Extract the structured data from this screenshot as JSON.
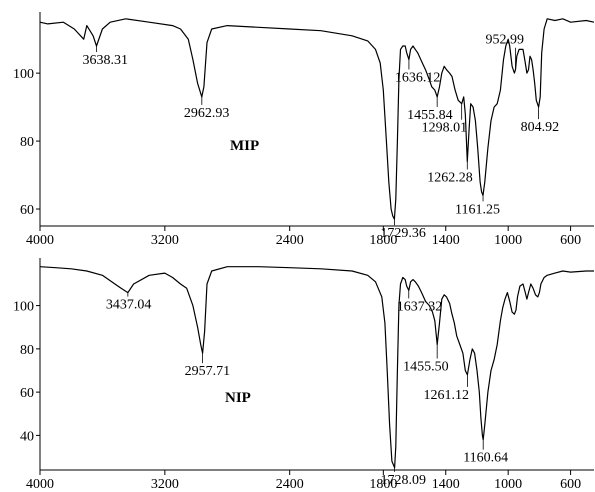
{
  "chart_data": [
    {
      "type": "line",
      "label": "MIP",
      "xlim": [
        4000,
        450
      ],
      "ylim": [
        55,
        118
      ],
      "x_ticks": [
        4000,
        3200,
        2400,
        1800,
        1400,
        1000,
        600
      ],
      "y_ticks": [
        100,
        80,
        60
      ],
      "series": [
        {
          "points": [
            [
              4000,
              115
            ],
            [
              3950,
              114.5
            ],
            [
              3850,
              115
            ],
            [
              3780,
              113
            ],
            [
              3720,
              110
            ],
            [
              3700,
              114
            ],
            [
              3660,
              111
            ],
            [
              3638,
              108
            ],
            [
              3600,
              113
            ],
            [
              3550,
              115
            ],
            [
              3450,
              116
            ],
            [
              3300,
              115
            ],
            [
              3150,
              114
            ],
            [
              3100,
              113
            ],
            [
              3050,
              110
            ],
            [
              3020,
              104
            ],
            [
              2990,
              97
            ],
            [
              2963,
              93
            ],
            [
              2950,
              96
            ],
            [
              2930,
              109
            ],
            [
              2900,
              113
            ],
            [
              2800,
              114
            ],
            [
              2600,
              113.5
            ],
            [
              2400,
              113
            ],
            [
              2200,
              112.5
            ],
            [
              2000,
              111
            ],
            [
              1900,
              109.5
            ],
            [
              1850,
              107
            ],
            [
              1820,
              103
            ],
            [
              1800,
              95
            ],
            [
              1780,
              80
            ],
            [
              1765,
              68
            ],
            [
              1750,
              60
            ],
            [
              1740,
              58
            ],
            [
              1729,
              57
            ],
            [
              1720,
              63
            ],
            [
              1710,
              80
            ],
            [
              1700,
              98
            ],
            [
              1690,
              107
            ],
            [
              1675,
              108
            ],
            [
              1660,
              108
            ],
            [
              1650,
              106
            ],
            [
              1636,
              104
            ],
            [
              1625,
              107
            ],
            [
              1610,
              108
            ],
            [
              1595,
              107
            ],
            [
              1580,
              106
            ],
            [
              1560,
              104
            ],
            [
              1530,
              101
            ],
            [
              1505,
              98
            ],
            [
              1490,
              96
            ],
            [
              1470,
              95
            ],
            [
              1455,
              93
            ],
            [
              1440,
              96
            ],
            [
              1425,
              100
            ],
            [
              1410,
              102
            ],
            [
              1395,
              101
            ],
            [
              1375,
              100
            ],
            [
              1360,
              99
            ],
            [
              1340,
              95
            ],
            [
              1320,
              92
            ],
            [
              1298,
              91
            ],
            [
              1285,
              93
            ],
            [
              1275,
              88
            ],
            [
              1262,
              74
            ],
            [
              1250,
              84
            ],
            [
              1240,
              91
            ],
            [
              1225,
              90
            ],
            [
              1210,
              86
            ],
            [
              1195,
              78
            ],
            [
              1180,
              68
            ],
            [
              1170,
              65
            ],
            [
              1161,
              64
            ],
            [
              1150,
              68
            ],
            [
              1130,
              78
            ],
            [
              1110,
              86
            ],
            [
              1090,
              90
            ],
            [
              1070,
              91
            ],
            [
              1050,
              95
            ],
            [
              1030,
              104
            ],
            [
              1015,
              108
            ],
            [
              1000,
              110
            ],
            [
              990,
              108
            ],
            [
              975,
              102
            ],
            [
              960,
              100
            ],
            [
              953,
              101
            ],
            [
              945,
              105
            ],
            [
              930,
              107
            ],
            [
              905,
              107
            ],
            [
              890,
              103
            ],
            [
              880,
              100
            ],
            [
              870,
              101
            ],
            [
              860,
              105
            ],
            [
              850,
              104
            ],
            [
              840,
              101
            ],
            [
              830,
              97
            ],
            [
              820,
              92
            ],
            [
              805,
              90
            ],
            [
              795,
              93
            ],
            [
              785,
              106
            ],
            [
              770,
              113
            ],
            [
              750,
              116
            ],
            [
              700,
              115.5
            ],
            [
              650,
              116
            ],
            [
              600,
              115
            ],
            [
              500,
              115.5
            ],
            [
              450,
              115
            ]
          ]
        }
      ],
      "annotations": [
        {
          "text": "3638.31",
          "x": 3638,
          "y": 108
        },
        {
          "text": "2962.93",
          "x": 2963,
          "y": 93
        },
        {
          "text": "1636.12",
          "x": 1636,
          "y": 104
        },
        {
          "text": "1455.84",
          "x": 1455,
          "y": 93
        },
        {
          "text": "1298.01",
          "x": 1298,
          "y": 91
        },
        {
          "text": "1262.28",
          "x": 1262,
          "y": 74
        },
        {
          "text": "1161.25",
          "x": 1161,
          "y": 64
        },
        {
          "text": "1729.36",
          "x": 1729,
          "y": 57
        },
        {
          "text": "952.99",
          "x": 953,
          "y": 101
        },
        {
          "text": "804.92",
          "x": 805,
          "y": 90
        }
      ]
    },
    {
      "type": "line",
      "label": "NIP",
      "xlim": [
        4000,
        450
      ],
      "ylim": [
        24,
        122
      ],
      "x_ticks": [
        4000,
        3200,
        2400,
        1800,
        1400,
        1000,
        600
      ],
      "y_ticks": [
        100,
        80,
        60,
        40
      ],
      "series": [
        {
          "points": [
            [
              4000,
              118
            ],
            [
              3900,
              117.5
            ],
            [
              3800,
              117
            ],
            [
              3700,
              116
            ],
            [
              3600,
              114
            ],
            [
              3520,
              110
            ],
            [
              3480,
              108
            ],
            [
              3437,
              106
            ],
            [
              3400,
              110
            ],
            [
              3300,
              114
            ],
            [
              3200,
              115
            ],
            [
              3150,
              113
            ],
            [
              3100,
              110
            ],
            [
              3060,
              108
            ],
            [
              3020,
              100
            ],
            [
              2990,
              90
            ],
            [
              2970,
              82
            ],
            [
              2958,
              78
            ],
            [
              2945,
              88
            ],
            [
              2930,
              110
            ],
            [
              2900,
              116
            ],
            [
              2800,
              118
            ],
            [
              2600,
              118
            ],
            [
              2400,
              117.5
            ],
            [
              2200,
              117
            ],
            [
              2000,
              116
            ],
            [
              1900,
              114
            ],
            [
              1850,
              111
            ],
            [
              1810,
              104
            ],
            [
              1790,
              92
            ],
            [
              1775,
              70
            ],
            [
              1760,
              45
            ],
            [
              1745,
              28
            ],
            [
              1733,
              26
            ],
            [
              1728,
              25
            ],
            [
              1720,
              35
            ],
            [
              1710,
              70
            ],
            [
              1700,
              100
            ],
            [
              1690,
              110
            ],
            [
              1675,
              113
            ],
            [
              1660,
              112
            ],
            [
              1650,
              109
            ],
            [
              1637,
              107
            ],
            [
              1625,
              111
            ],
            [
              1610,
              112
            ],
            [
              1595,
              111
            ],
            [
              1575,
              109
            ],
            [
              1555,
              106
            ],
            [
              1530,
              102
            ],
            [
              1505,
              100
            ],
            [
              1485,
              97
            ],
            [
              1470,
              93
            ],
            [
              1455,
              82
            ],
            [
              1440,
              92
            ],
            [
              1425,
              103
            ],
            [
              1410,
              105
            ],
            [
              1395,
              104
            ],
            [
              1375,
              101
            ],
            [
              1360,
              96
            ],
            [
              1345,
              92
            ],
            [
              1330,
              86
            ],
            [
              1310,
              82
            ],
            [
              1290,
              78
            ],
            [
              1275,
              70
            ],
            [
              1261,
              68
            ],
            [
              1245,
              75
            ],
            [
              1230,
              80
            ],
            [
              1215,
              78
            ],
            [
              1200,
              70
            ],
            [
              1185,
              60
            ],
            [
              1175,
              48
            ],
            [
              1165,
              40
            ],
            [
              1160,
              38
            ],
            [
              1150,
              45
            ],
            [
              1130,
              60
            ],
            [
              1110,
              70
            ],
            [
              1090,
              75
            ],
            [
              1070,
              82
            ],
            [
              1050,
              93
            ],
            [
              1035,
              99
            ],
            [
              1020,
              103
            ],
            [
              1005,
              106
            ],
            [
              990,
              102
            ],
            [
              975,
              97
            ],
            [
              960,
              96
            ],
            [
              950,
              98
            ],
            [
              940,
              104
            ],
            [
              925,
              109
            ],
            [
              905,
              110
            ],
            [
              890,
              106
            ],
            [
              880,
              103
            ],
            [
              870,
              106
            ],
            [
              855,
              110
            ],
            [
              840,
              108
            ],
            [
              825,
              105
            ],
            [
              810,
              104
            ],
            [
              800,
              106
            ],
            [
              790,
              110
            ],
            [
              770,
              113
            ],
            [
              750,
              114
            ],
            [
              700,
              115
            ],
            [
              650,
              116
            ],
            [
              600,
              115.5
            ],
            [
              500,
              116
            ],
            [
              450,
              116
            ]
          ]
        }
      ],
      "annotations": [
        {
          "text": "3437.04",
          "x": 3437,
          "y": 106
        },
        {
          "text": "2957.71",
          "x": 2958,
          "y": 78
        },
        {
          "text": "1637.32",
          "x": 1637,
          "y": 107
        },
        {
          "text": "1455.50",
          "x": 1455,
          "y": 82
        },
        {
          "text": "1261.12",
          "x": 1261,
          "y": 68
        },
        {
          "text": "1728.09",
          "x": 1728,
          "y": 25
        },
        {
          "text": "1160.64",
          "x": 1160,
          "y": 38
        }
      ]
    }
  ]
}
